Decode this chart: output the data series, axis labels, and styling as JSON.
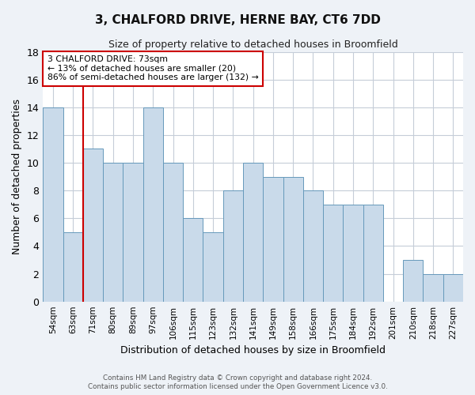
{
  "title1": "3, CHALFORD DRIVE, HERNE BAY, CT6 7DD",
  "title2": "Size of property relative to detached houses in Broomfield",
  "xlabel": "Distribution of detached houses by size in Broomfield",
  "ylabel": "Number of detached properties",
  "categories": [
    "54sqm",
    "63sqm",
    "71sqm",
    "80sqm",
    "89sqm",
    "97sqm",
    "106sqm",
    "115sqm",
    "123sqm",
    "132sqm",
    "141sqm",
    "149sqm",
    "158sqm",
    "166sqm",
    "175sqm",
    "184sqm",
    "192sqm",
    "201sqm",
    "210sqm",
    "218sqm",
    "227sqm"
  ],
  "values": [
    14,
    5,
    11,
    10,
    10,
    14,
    10,
    6,
    5,
    8,
    10,
    9,
    9,
    8,
    7,
    7,
    7,
    0,
    3,
    2,
    2
  ],
  "bar_color": "#c9daea",
  "bar_edgecolor": "#6699bb",
  "vline_x": 1.5,
  "vline_color": "#cc0000",
  "annotation_text": "3 CHALFORD DRIVE: 73sqm\n← 13% of detached houses are smaller (20)\n86% of semi-detached houses are larger (132) →",
  "annotation_box_color": "#ffffff",
  "annotation_box_edgecolor": "#cc0000",
  "ylim": [
    0,
    18
  ],
  "yticks": [
    0,
    2,
    4,
    6,
    8,
    10,
    12,
    14,
    16,
    18
  ],
  "footer1": "Contains HM Land Registry data © Crown copyright and database right 2024.",
  "footer2": "Contains public sector information licensed under the Open Government Licence v3.0.",
  "bg_color": "#eef2f7",
  "plot_bg_color": "#ffffff",
  "grid_color": "#c5cdd8"
}
